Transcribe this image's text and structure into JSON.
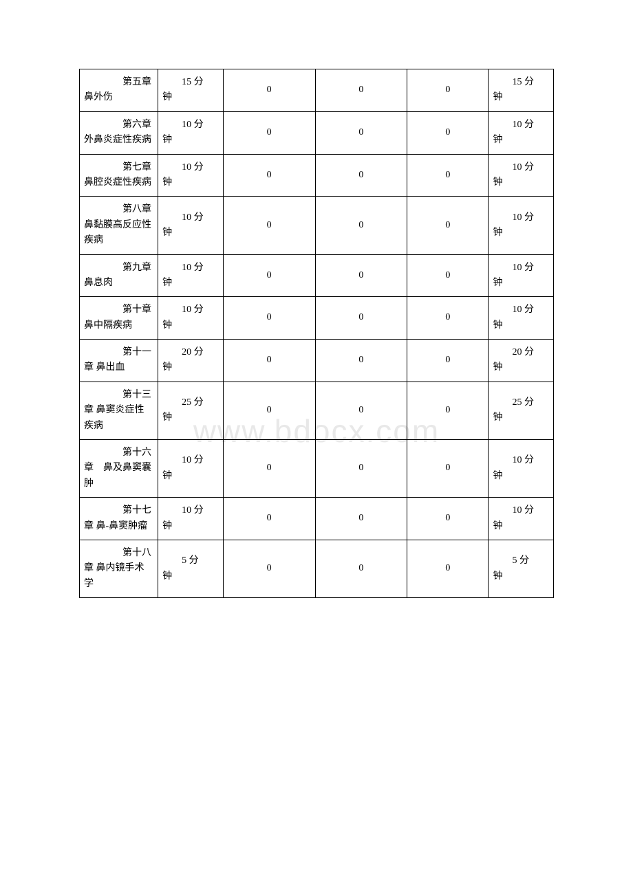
{
  "watermark": "www.bdocx.com",
  "table": {
    "background_color": "#ffffff",
    "border_color": "#000000",
    "text_color": "#000000",
    "watermark_color": "#e8e8e8",
    "font_size": 14,
    "rows": [
      {
        "chapter": "　　第五章　鼻外伤",
        "time1_line1": "　　15 分",
        "time1_line2": "钟",
        "zero1": "0",
        "zero2": "0",
        "zero3": "0",
        "time2_line1": "　　15 分",
        "time2_line2": "钟"
      },
      {
        "chapter": "　　第六章 外鼻炎症性疾病",
        "time1_line1": "　　10 分",
        "time1_line2": "钟",
        "zero1": "0",
        "zero2": "0",
        "zero3": "0",
        "time2_line1": "　　10 分",
        "time2_line2": "钟"
      },
      {
        "chapter": "　　第七章 鼻腔炎症性疾病",
        "time1_line1": "　　10 分",
        "time1_line2": "钟",
        "zero1": "0",
        "zero2": "0",
        "zero3": "0",
        "time2_line1": "　　10 分",
        "time2_line2": "钟"
      },
      {
        "chapter": "　　第八章 鼻黏膜高反应性疾病",
        "time1_line1": "　　10 分",
        "time1_line2": "钟",
        "zero1": "0",
        "zero2": "0",
        "zero3": "0",
        "time2_line1": "　　10 分",
        "time2_line2": "钟"
      },
      {
        "chapter": "　　第九章 鼻息肉",
        "time1_line1": "　　10 分",
        "time1_line2": "钟",
        "zero1": "0",
        "zero2": "0",
        "zero3": "0",
        "time2_line1": "　　10 分",
        "time2_line2": "钟"
      },
      {
        "chapter": "　　第十章 鼻中隔疾病",
        "time1_line1": "　　10 分",
        "time1_line2": "钟",
        "zero1": "0",
        "zero2": "0",
        "zero3": "0",
        "time2_line1": "　　10 分",
        "time2_line2": "钟"
      },
      {
        "chapter": "　　第十一章 鼻出血",
        "time1_line1": "　　20 分",
        "time1_line2": "钟",
        "zero1": "0",
        "zero2": "0",
        "zero3": "0",
        "time2_line1": "　　20 分",
        "time2_line2": "钟"
      },
      {
        "chapter": "　　第十三章 鼻窦炎症性疾病",
        "time1_line1": "　　25 分",
        "time1_line2": "钟",
        "zero1": "0",
        "zero2": "0",
        "zero3": "0",
        "time2_line1": "　　25 分",
        "time2_line2": "钟"
      },
      {
        "chapter": "　　第十六章　鼻及鼻窦囊肿",
        "time1_line1": "　　10 分",
        "time1_line2": "钟",
        "zero1": "0",
        "zero2": "0",
        "zero3": "0",
        "time2_line1": "　　10 分",
        "time2_line2": "钟"
      },
      {
        "chapter": "　　第十七章 鼻-鼻窦肿瘤",
        "time1_line1": "　　10 分",
        "time1_line2": "钟",
        "zero1": "0",
        "zero2": "0",
        "zero3": "0",
        "time2_line1": "　　10 分",
        "time2_line2": "钟"
      },
      {
        "chapter": "　　第十八章 鼻内镜手术学",
        "time1_line1": "　　5 分",
        "time1_line2": "钟",
        "zero1": "0",
        "zero2": "0",
        "zero3": "0",
        "time2_line1": "　　5 分",
        "time2_line2": "钟"
      }
    ]
  }
}
